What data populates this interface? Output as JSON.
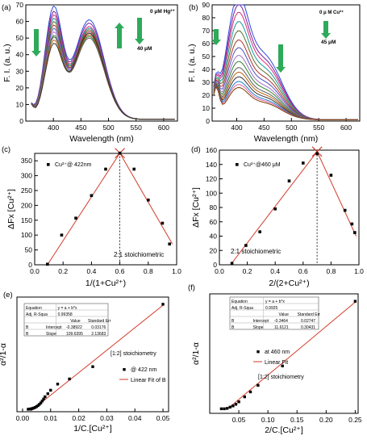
{
  "chart_data": [
    {
      "panel": "(a)",
      "type": "line",
      "xlabel": "Wavelength (nm)",
      "ylabel": "F. I. (a. u.)",
      "xlim": [
        350,
        625
      ],
      "ylim": [
        0,
        70
      ],
      "xticks": [
        400,
        450,
        500,
        550,
        600
      ],
      "yticks": [
        0,
        10,
        20,
        30,
        40,
        50,
        60,
        70
      ],
      "annotation_top": "0  μM Hg²⁺",
      "annotation_bottom": "40 μM",
      "peak1_x": 400,
      "peak2_x": 465,
      "peak1_values": [
        65,
        62,
        60,
        58,
        56,
        54,
        52,
        50,
        48,
        47,
        45,
        43
      ],
      "peak2_values": [
        60,
        58,
        56,
        55,
        54,
        53,
        52,
        51,
        50,
        49,
        51,
        52
      ],
      "colors": [
        "#2e4bd6",
        "#7a1fa0",
        "#d6307a",
        "#1a9a9a",
        "#5a6b2a",
        "#b03030",
        "#5050c0",
        "#a070c0",
        "#308030",
        "#606060",
        "#c06010",
        "#303030"
      ]
    },
    {
      "panel": "(b)",
      "type": "line",
      "xlabel": "Wavelength (nm)",
      "ylabel": "F. I. (a. u.)",
      "xlim": [
        355,
        625
      ],
      "ylim": [
        0,
        90
      ],
      "xticks": [
        400,
        450,
        500,
        550,
        600
      ],
      "yticks": [
        0,
        10,
        20,
        30,
        40,
        50,
        60,
        70,
        80,
        90
      ],
      "annotation_top": "0 μ M Cu²⁺",
      "annotation_bottom": "45 μM",
      "peak_x": 400,
      "peak_values": [
        81,
        75,
        70,
        64,
        58,
        52,
        47,
        42,
        38,
        34,
        31,
        28,
        25,
        23,
        21
      ],
      "colors": [
        "#2e4bd6",
        "#7a1fa0",
        "#d6307a",
        "#1a9a9a",
        "#5a6b2a",
        "#b03030",
        "#5050c0",
        "#a070c0",
        "#308030",
        "#606060",
        "#c06010",
        "#303030",
        "#2080d0",
        "#e060a0",
        "#804000"
      ]
    },
    {
      "panel": "(c)",
      "type": "scatter",
      "legend": "Cu²⁺@ 422nm",
      "xlabel": "1/(1+Cu²⁺)",
      "ylabel": "ΔFx [Cu²⁺]",
      "xlim": [
        0,
        1.0
      ],
      "ylim": [
        0,
        375
      ],
      "xticks": [
        0.0,
        0.2,
        0.4,
        0.6,
        0.8,
        1.0
      ],
      "yticks": [
        0,
        50,
        100,
        150,
        200,
        250,
        300,
        350
      ],
      "x": [
        0.09,
        0.19,
        0.29,
        0.4,
        0.5,
        0.6,
        0.7,
        0.8,
        0.9,
        0.95
      ],
      "y": [
        2,
        100,
        157,
        233,
        322,
        376,
        322,
        218,
        140,
        70
      ],
      "fit_left": [
        [
          0.09,
          0
        ],
        [
          0.6,
          376
        ]
      ],
      "fit_right": [
        [
          0.6,
          376
        ],
        [
          0.97,
          70
        ]
      ],
      "vline_x": 0.6,
      "note": "2:1 stoichiometric"
    },
    {
      "panel": "(d)",
      "type": "scatter",
      "legend": "Cu²⁺@460 μM",
      "xlabel": "2/(2+Cu²⁺)",
      "ylabel": "ΔFx [Cu²⁺]",
      "xlim": [
        0,
        1.0
      ],
      "ylim": [
        0,
        160
      ],
      "xticks": [
        0.0,
        0.2,
        0.4,
        0.6,
        0.8,
        1.0
      ],
      "yticks": [
        0,
        20,
        40,
        60,
        80,
        100,
        120,
        140,
        160
      ],
      "x": [
        0.09,
        0.19,
        0.29,
        0.4,
        0.5,
        0.6,
        0.7,
        0.8,
        0.9,
        0.95,
        0.97
      ],
      "y": [
        2,
        27,
        46,
        78,
        117,
        142,
        155,
        125,
        76,
        57,
        45
      ],
      "fit_left": [
        [
          0.08,
          0
        ],
        [
          0.7,
          158
        ]
      ],
      "fit_right": [
        [
          0.7,
          158
        ],
        [
          0.98,
          40
        ]
      ],
      "vline_x": 0.7,
      "note": "2:1 stoichiometric"
    },
    {
      "panel": "(e)",
      "type": "scatter",
      "xlabel": "1/C.[Cu²⁺]",
      "ylabel": "α²/1-α",
      "xlim": [
        -0.002,
        0.052
      ],
      "ylim": [
        -0.1,
        5.5
      ],
      "xticks": [
        0.0,
        0.01,
        0.02,
        0.03,
        0.04,
        0.05
      ],
      "x": [
        0.002,
        0.0025,
        0.003,
        0.0035,
        0.004,
        0.0045,
        0.005,
        0.0055,
        0.006,
        0.0065,
        0.007,
        0.0075,
        0.008,
        0.009,
        0.01,
        0.0125,
        0.0167,
        0.025,
        0.05
      ],
      "y": [
        0.02,
        0.03,
        0.04,
        0.06,
        0.08,
        0.11,
        0.15,
        0.2,
        0.26,
        0.33,
        0.42,
        0.52,
        0.63,
        0.78,
        0.95,
        1.25,
        1.5,
        2.1,
        5.15
      ],
      "fit_line": [
        [
          0.003,
          -0.06
        ],
        [
          0.05,
          5.1
        ]
      ],
      "legend_points": "@ 422 nm",
      "legend_line": "Linear Fit of B",
      "note": "[1:2] stoichiometry",
      "table": {
        "equation_label": "Equation",
        "equation": "y = a + b*x",
        "r2_label": "Adj. R-Squa",
        "r2": "0.99358",
        "header": [
          "",
          "",
          "Value",
          "Standard Err"
        ],
        "rows": [
          [
            "B",
            "Intercept",
            "-0.38922",
            "0.03176"
          ],
          [
            "B",
            "Slope",
            "109.6395",
            "2.13683"
          ]
        ]
      }
    },
    {
      "panel": "(f)",
      "type": "scatter",
      "xlabel": "2/C.[Cu²⁺]",
      "ylabel": "α²/1-α",
      "xlim": [
        0.0,
        0.255
      ],
      "ylim": [
        -0.1,
        2.8
      ],
      "xticks": [
        0.05,
        0.1,
        0.15,
        0.2,
        0.25
      ],
      "x": [
        0.02,
        0.025,
        0.03,
        0.035,
        0.04,
        0.045,
        0.05,
        0.06,
        0.07,
        0.083,
        0.125,
        0.25
      ],
      "y": [
        0.01,
        0.01,
        0.02,
        0.05,
        0.08,
        0.12,
        0.18,
        0.3,
        0.42,
        0.58,
        1.05,
        2.62
      ],
      "fit_line": [
        [
          0.03,
          0.0
        ],
        [
          0.25,
          2.6
        ]
      ],
      "legend_points": "at 460 nm",
      "legend_line": "Linear Fit",
      "note": "[1:2] stoichiometry",
      "table": {
        "equation_label": "Equation",
        "equation": "y = a + b*x",
        "r2_label": "Adj. R-Squa",
        "r2": "0.9925",
        "header": [
          "",
          "",
          "Value",
          "Standard Err"
        ],
        "rows": [
          [
            "B",
            "Intercept",
            "-0.3464",
            "0.02747"
          ],
          [
            "B",
            "Slope",
            "11.6121",
            "0.30431"
          ]
        ]
      }
    }
  ]
}
